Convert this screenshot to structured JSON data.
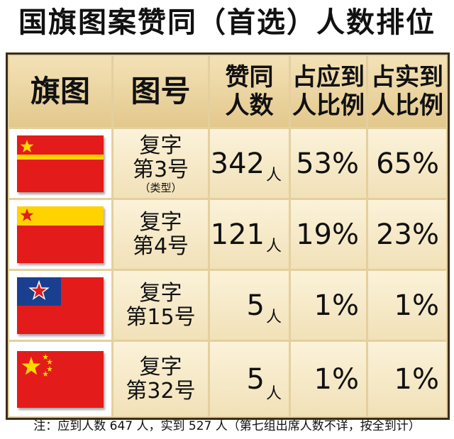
{
  "title": "国旗图案赞同（首选）人数排位",
  "headers": {
    "flag": "旗图",
    "design_no": "图号",
    "votes_line1": "赞同",
    "votes_line2": "人数",
    "pct_expected_line1": "占应到",
    "pct_expected_line2": "人比例",
    "pct_actual_line1": "占实到",
    "pct_actual_line2": "人比例"
  },
  "rows": [
    {
      "flag_icon": "flag-fuzi-3-icon",
      "design_line1": "复字",
      "design_line2": "第3号",
      "design_note": "（类型）",
      "votes": "342",
      "unit": "人",
      "pct_expected": "53%",
      "pct_actual": "65%"
    },
    {
      "flag_icon": "flag-fuzi-4-icon",
      "design_line1": "复字",
      "design_line2": "第4号",
      "design_note": "",
      "votes": "121",
      "unit": "人",
      "pct_expected": "19%",
      "pct_actual": "23%"
    },
    {
      "flag_icon": "flag-fuzi-15-icon",
      "design_line1": "复字",
      "design_line2": "第15号",
      "design_note": "",
      "votes": "5",
      "unit": "人",
      "pct_expected": "1%",
      "pct_actual": "1%"
    },
    {
      "flag_icon": "flag-fuzi-32-icon",
      "design_line1": "复字",
      "design_line2": "第32号",
      "design_note": "",
      "votes": "5",
      "unit": "人",
      "pct_expected": "1%",
      "pct_actual": "1%"
    }
  ],
  "footnote": "注：应到人数 647 人，实到 527 人（第七组出席人数不详，按全到计）",
  "colors": {
    "flag_red": "#e31b1b",
    "star_yellow": "#ffd700",
    "band_yellow": "#ffd200",
    "canton_blue": "#1b3f8f",
    "header_bg": "#e9d39c",
    "cell_bg": "#f7ebcb",
    "border": "#3a2e1a"
  }
}
